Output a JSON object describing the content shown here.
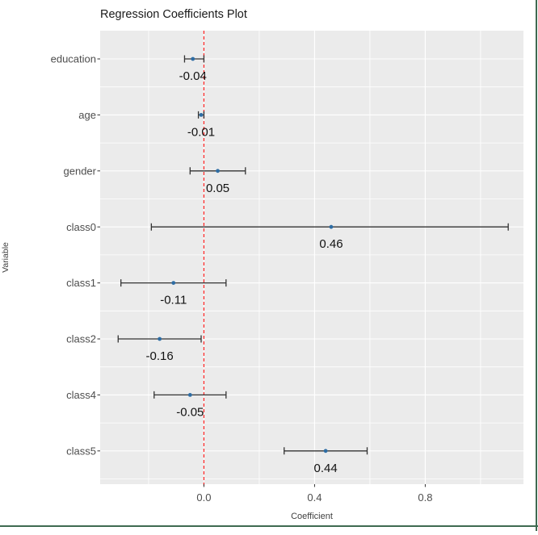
{
  "window": {
    "frame_border_color": "#3e6a50"
  },
  "colors": {
    "panel_bg": "#ebebeb",
    "grid": "#ffffff",
    "error_bar": "#333333",
    "point": "#2e6da4",
    "reference_line": "#ff2222",
    "tick_mark": "#333333",
    "title_text": "#1a1a1a",
    "axis_text": "#4d4d4d",
    "axis_title_text": "#404040",
    "value_label_text": "#111111"
  },
  "chart_data": {
    "type": "scatter",
    "subtype": "coefficient-forest-plot",
    "orientation": "horizontal",
    "title": "Regression Coefficients Plot",
    "xlabel": "Coefficient",
    "ylabel": "Variable",
    "categories": [
      "education",
      "age",
      "gender",
      "class0",
      "class1",
      "class2",
      "class4",
      "class5"
    ],
    "estimates": [
      -0.04,
      -0.01,
      0.05,
      0.46,
      -0.11,
      -0.16,
      -0.05,
      0.44
    ],
    "ci_low": [
      -0.07,
      -0.02,
      -0.05,
      -0.19,
      -0.3,
      -0.31,
      -0.18,
      0.29
    ],
    "ci_high": [
      0.0,
      0.0,
      0.15,
      1.1,
      0.08,
      -0.01,
      0.08,
      0.59
    ],
    "point_labels": [
      "-0.04",
      "-0.01",
      "0.05",
      "0.46",
      "-0.11",
      "-0.16",
      "-0.05",
      "0.44"
    ],
    "x_ticks": [
      0.0,
      0.4,
      0.8
    ],
    "x_tick_labels": [
      "0.0",
      "0.4",
      "0.8"
    ],
    "x_minor_ticks": [
      -0.2,
      0.2,
      0.6,
      1.0
    ],
    "xlim": [
      -0.375,
      1.155
    ],
    "reference_line_x": 0,
    "grid": true,
    "legend": false
  }
}
